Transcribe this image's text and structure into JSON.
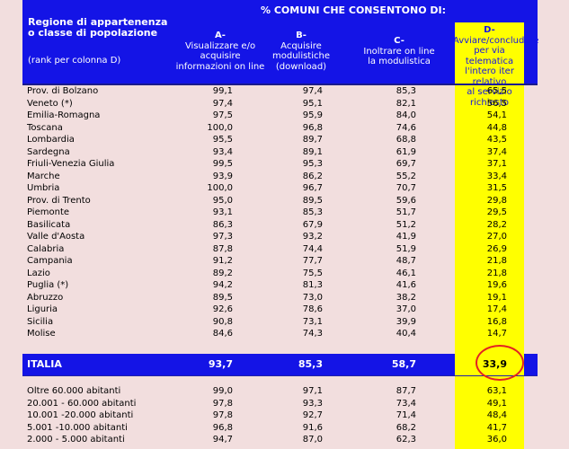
{
  "header": {
    "left_title_line1": "Regione di appartenenza",
    "left_title_line2": "o classe di popolazione",
    "left_subtitle": "(rank per colonna D)",
    "span_title": "% COMUNI CHE CONSENTONO DI:",
    "col_a": [
      "A-",
      "Visualizzare e/o",
      "acquisire",
      "informazioni on line"
    ],
    "col_b": [
      "B-",
      "Acquisire",
      "modulistiche",
      "(download)"
    ],
    "col_c": [
      "C-",
      "Inoltrare on line",
      "la modulistica"
    ],
    "col_d": [
      "D-",
      "Avviare/concludere",
      "per via telematica",
      "l'intero iter relativo",
      "al servizio richiesto"
    ]
  },
  "regions": [
    {
      "name": "Prov. di Bolzano",
      "a": "99,1",
      "b": "97,4",
      "c": "85,3",
      "d": "65,5"
    },
    {
      "name": "Veneto (*)",
      "a": "97,4",
      "b": "95,1",
      "c": "82,1",
      "d": "56,5"
    },
    {
      "name": "Emilia-Romagna",
      "a": "97,5",
      "b": "95,9",
      "c": "84,0",
      "d": "54,1"
    },
    {
      "name": "Toscana",
      "a": "100,0",
      "b": "96,8",
      "c": "74,6",
      "d": "44,8"
    },
    {
      "name": "Lombardia",
      "a": "95,5",
      "b": "89,7",
      "c": "68,8",
      "d": "43,5"
    },
    {
      "name": "Sardegna",
      "a": "93,4",
      "b": "89,1",
      "c": "61,9",
      "d": "37,4"
    },
    {
      "name": "Friuli-Venezia Giulia",
      "a": "99,5",
      "b": "95,3",
      "c": "69,7",
      "d": "37,1"
    },
    {
      "name": "Marche",
      "a": "93,9",
      "b": "86,2",
      "c": "55,2",
      "d": "33,4"
    },
    {
      "name": "Umbria",
      "a": "100,0",
      "b": "96,7",
      "c": "70,7",
      "d": "31,5"
    },
    {
      "name": "Prov. di Trento",
      "a": "95,0",
      "b": "89,5",
      "c": "59,6",
      "d": "29,8"
    },
    {
      "name": "Piemonte",
      "a": "93,1",
      "b": "85,3",
      "c": "51,7",
      "d": "29,5"
    },
    {
      "name": "Basilicata",
      "a": "86,3",
      "b": "67,9",
      "c": "51,2",
      "d": "28,2"
    },
    {
      "name": "Valle d'Aosta",
      "a": "97,3",
      "b": "93,2",
      "c": "41,9",
      "d": "27,0"
    },
    {
      "name": "Calabria",
      "a": "87,8",
      "b": "74,4",
      "c": "51,9",
      "d": "26,9"
    },
    {
      "name": "Campania",
      "a": "91,2",
      "b": "77,7",
      "c": "48,7",
      "d": "21,8"
    },
    {
      "name": "Lazio",
      "a": "89,2",
      "b": "75,5",
      "c": "46,1",
      "d": "21,8"
    },
    {
      "name": "Puglia (*)",
      "a": "94,2",
      "b": "81,3",
      "c": "41,6",
      "d": "19,6"
    },
    {
      "name": "Abruzzo",
      "a": "89,5",
      "b": "73,0",
      "c": "38,2",
      "d": "19,1"
    },
    {
      "name": "Liguria",
      "a": "92,6",
      "b": "78,6",
      "c": "37,0",
      "d": "17,4"
    },
    {
      "name": "Sicilia",
      "a": "90,8",
      "b": "73,1",
      "c": "39,9",
      "d": "16,8"
    },
    {
      "name": "Molise",
      "a": "84,6",
      "b": "74,3",
      "c": "40,4",
      "d": "14,7"
    }
  ],
  "italia": {
    "name": "ITALIA",
    "a": "93,7",
    "b": "85,3",
    "c": "58,7",
    "d": "33,9"
  },
  "classes": [
    {
      "name": "Oltre 60.000 abitanti",
      "a": "99,0",
      "b": "97,1",
      "c": "87,7",
      "d": "63,1"
    },
    {
      "name": "20.001 - 60.000 abitanti",
      "a": "97,8",
      "b": "93,3",
      "c": "73,4",
      "d": "49,1"
    },
    {
      "name": "10.001 -20.000 abitanti",
      "a": "97,8",
      "b": "92,7",
      "c": "71,4",
      "d": "48,4"
    },
    {
      "name": "5.001 -10.000 abitanti",
      "a": "96,8",
      "b": "91,6",
      "c": "68,2",
      "d": "41,7"
    },
    {
      "name": "2.000 - 5.000 abitanti",
      "a": "94,7",
      "b": "87,0",
      "c": "62,3",
      "d": "36,0"
    }
  ],
  "colors": {
    "header_blue": "#1414e6",
    "highlight_yellow": "#ffff00",
    "background": "#f2dede",
    "circle_red": "#e32222"
  }
}
